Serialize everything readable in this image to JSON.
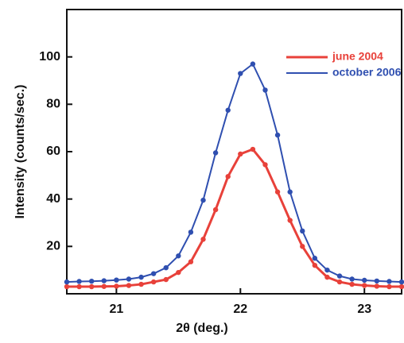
{
  "chart_data": {
    "type": "line",
    "x_label": "2θ (deg.)",
    "y_label": "Intensity (counts/sec.)",
    "x": [
      20.6,
      20.7,
      20.8,
      20.9,
      21.0,
      21.1,
      21.2,
      21.3,
      21.4,
      21.5,
      21.6,
      21.7,
      21.8,
      21.9,
      22.0,
      22.1,
      22.2,
      22.3,
      22.4,
      22.5,
      22.6,
      22.7,
      22.8,
      22.9,
      23.0,
      23.1,
      23.2,
      23.3
    ],
    "series": [
      {
        "name": "june 2004",
        "color": "#e8413a",
        "line_width": 3,
        "values": [
          3,
          3,
          3,
          3.1,
          3.2,
          3.5,
          4,
          5,
          6,
          9,
          13.5,
          23,
          35.5,
          49.5,
          59,
          61,
          54.5,
          43,
          31,
          20,
          12,
          7,
          5,
          4,
          3.5,
          3.2,
          3,
          3
        ]
      },
      {
        "name": "october 2006",
        "color": "#2f4fb0",
        "line_width": 2,
        "values": [
          5,
          5.2,
          5.3,
          5.5,
          5.8,
          6.2,
          7,
          8.5,
          11,
          16,
          26,
          39.5,
          59.5,
          77.5,
          93,
          97,
          86,
          67,
          43,
          26.5,
          15,
          10,
          7.5,
          6.2,
          5.7,
          5.4,
          5.2,
          5
        ]
      }
    ],
    "xlim": [
      20.6,
      23.3
    ],
    "xticks": [
      21,
      22,
      23
    ],
    "ylim": [
      0,
      120
    ],
    "yticks": [
      20,
      40,
      60,
      80,
      100
    ],
    "legend": "upper right"
  }
}
